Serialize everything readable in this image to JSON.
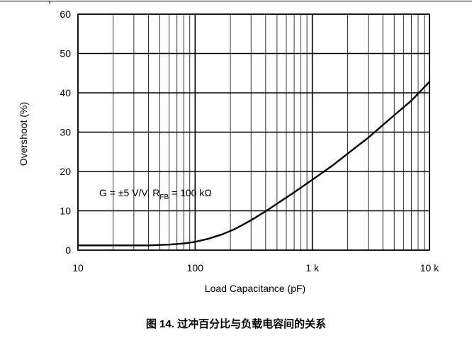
{
  "chart_data": {
    "type": "line",
    "x_scale": "log",
    "grid": true,
    "xlim": [
      10,
      10000
    ],
    "ylim": [
      0,
      60
    ],
    "xticks": [
      {
        "value": 10,
        "label": "10"
      },
      {
        "value": 100,
        "label": "100"
      },
      {
        "value": 1000,
        "label": "1 k"
      },
      {
        "value": 10000,
        "label": "10 k"
      }
    ],
    "yticks": [
      {
        "value": 0,
        "label": "0"
      },
      {
        "value": 10,
        "label": "10"
      },
      {
        "value": 20,
        "label": "20"
      },
      {
        "value": 30,
        "label": "30"
      },
      {
        "value": 40,
        "label": "40"
      },
      {
        "value": 50,
        "label": "50"
      },
      {
        "value": 60,
        "label": "60"
      }
    ],
    "xlabel": "Load Capacitance (pF)",
    "ylabel": "Overshoot (%)",
    "caption": "图 14. 过冲百分比与负载电容间的关系",
    "annotation": {
      "prefix": "G = ±5 V/V, R",
      "subscript": "FB",
      "suffix": " = 100 kΩ"
    },
    "series": [
      {
        "x": [
          10,
          20,
          40,
          60,
          80,
          100,
          130,
          170,
          220,
          300,
          400,
          500,
          700,
          1000,
          1500,
          2000,
          3000,
          5000,
          7000,
          10000
        ],
        "y": [
          1.2,
          1.2,
          1.2,
          1.4,
          1.7,
          2.1,
          2.9,
          4.0,
          5.4,
          7.6,
          9.9,
          11.8,
          14.7,
          17.9,
          21.6,
          24.5,
          28.6,
          34.3,
          38.0,
          42.8
        ],
        "color": "#000000"
      }
    ]
  }
}
